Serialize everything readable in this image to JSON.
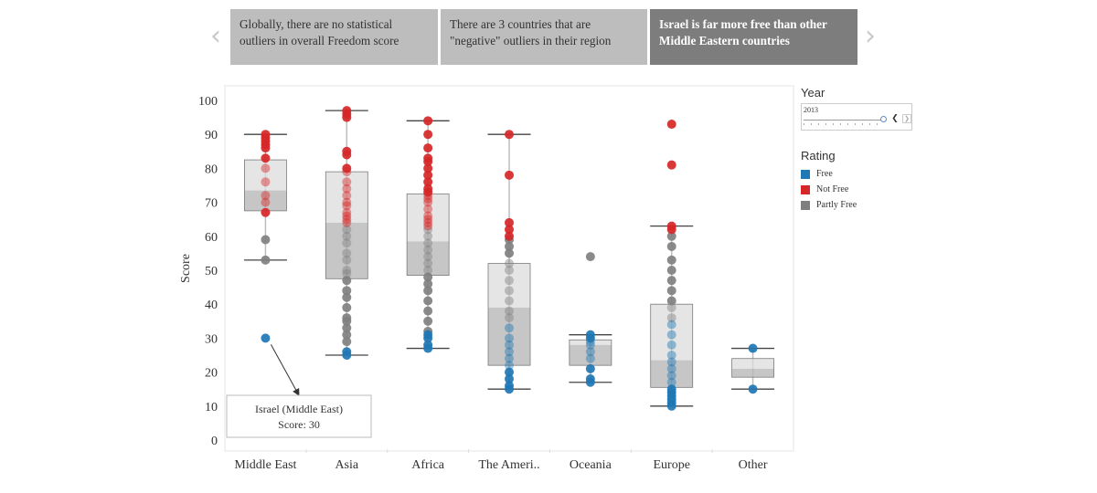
{
  "story": {
    "points": [
      {
        "text": "Globally, there are no statistical outliers in overall Freedom score"
      },
      {
        "text": "There are 3 countries that are \"negative\" outliers in their region"
      },
      {
        "text": "Israel is far more free than other Middle Eastern countries"
      }
    ],
    "active_index": 2,
    "prev_icon": "chevron-left-icon",
    "next_icon": "chevron-right-icon",
    "prev_glyph": "‹",
    "next_glyph": "›"
  },
  "filter": {
    "title": "Year",
    "value": "2013",
    "prev_glyph": "❮",
    "next_glyph": "❯"
  },
  "legend": {
    "title": "Rating",
    "items": [
      {
        "label": "Free",
        "color": "#1f77b4"
      },
      {
        "label": "Not Free",
        "color": "#d62728"
      },
      {
        "label": "Partly Free",
        "color": "#7f7f7f"
      }
    ]
  },
  "chart_data": {
    "type": "box-plot with jittered points",
    "ylabel": "Score",
    "ylim": [
      0,
      100
    ],
    "yticks": [
      0,
      10,
      20,
      30,
      40,
      50,
      60,
      70,
      80,
      90,
      100
    ],
    "categories": [
      "Middle East",
      "Asia",
      "Africa",
      "The Ameri..",
      "Oceania",
      "Europe",
      "Other"
    ],
    "colors": {
      "Free": "#1f77b4",
      "Not Free": "#d62728",
      "Partly Free": "#808080"
    },
    "boxes": [
      {
        "category": "Middle East",
        "min": 53,
        "q1": 67.5,
        "median": 73.5,
        "q3": 82.5,
        "max": 90
      },
      {
        "category": "Asia",
        "min": 25,
        "q1": 47.5,
        "median": 64,
        "q3": 79,
        "max": 97
      },
      {
        "category": "Africa",
        "min": 27,
        "q1": 48.5,
        "median": 58.5,
        "q3": 72.5,
        "max": 94
      },
      {
        "category": "The Ameri..",
        "min": 15,
        "q1": 22,
        "median": 39,
        "q3": 52,
        "max": 90
      },
      {
        "category": "Oceania",
        "min": 17,
        "q1": 22,
        "median": 28,
        "q3": 29.5,
        "max": 31
      },
      {
        "category": "Europe",
        "min": 10,
        "q1": 15.5,
        "median": 23.5,
        "q3": 40,
        "max": 63
      },
      {
        "category": "Other",
        "min": 15,
        "q1": 18.5,
        "median": 21,
        "q3": 24,
        "max": 27
      }
    ],
    "points": [
      {
        "category": "Middle East",
        "free": [
          30
        ],
        "partly": [
          53,
          59
        ],
        "notfree": [
          67,
          70,
          72,
          76,
          80,
          83,
          86,
          87,
          88,
          89,
          90
        ]
      },
      {
        "category": "Asia",
        "free": [
          25,
          26
        ],
        "partly": [
          29,
          31,
          33,
          35,
          36,
          39,
          42,
          44,
          47,
          49,
          50,
          53,
          55,
          58,
          60,
          62
        ],
        "notfree": [
          64,
          65,
          66,
          67,
          69,
          70,
          72,
          74,
          76,
          79,
          80,
          84,
          85,
          95,
          96,
          97
        ]
      },
      {
        "category": "Africa",
        "free": [
          27,
          28,
          30,
          31
        ],
        "partly": [
          32,
          35,
          38,
          41,
          44,
          46,
          48,
          50,
          52,
          54,
          56,
          58,
          60,
          62
        ],
        "notfree": [
          63,
          64,
          65,
          66,
          68,
          70,
          71,
          72,
          73,
          74,
          76,
          78,
          80,
          82,
          83,
          86,
          90,
          94
        ]
      },
      {
        "category": "The Ameri..",
        "free": [
          15,
          16,
          18,
          20,
          22,
          24,
          26,
          28,
          30,
          33
        ],
        "partly": [
          36,
          38,
          41,
          44,
          47,
          50,
          52,
          55,
          57,
          59
        ],
        "notfree": [
          60,
          62,
          64,
          78,
          90
        ]
      },
      {
        "category": "Oceania",
        "free": [
          17,
          18,
          21,
          24,
          26,
          28,
          29,
          30,
          31
        ],
        "partly": [
          54
        ],
        "notfree": []
      },
      {
        "category": "Europe",
        "free": [
          10,
          11,
          12,
          13,
          14,
          15,
          17,
          19,
          21,
          23,
          25,
          28,
          31,
          34
        ],
        "partly": [
          36,
          39,
          41,
          44,
          47,
          50,
          53,
          57,
          60
        ],
        "notfree": [
          62,
          63,
          81,
          93
        ]
      },
      {
        "category": "Other",
        "free": [
          15,
          27
        ],
        "partly": [],
        "notfree": []
      }
    ],
    "annotation": {
      "category": "Middle East",
      "value": 30,
      "lines": [
        "Israel (Middle East)",
        "Score: 30"
      ]
    }
  }
}
